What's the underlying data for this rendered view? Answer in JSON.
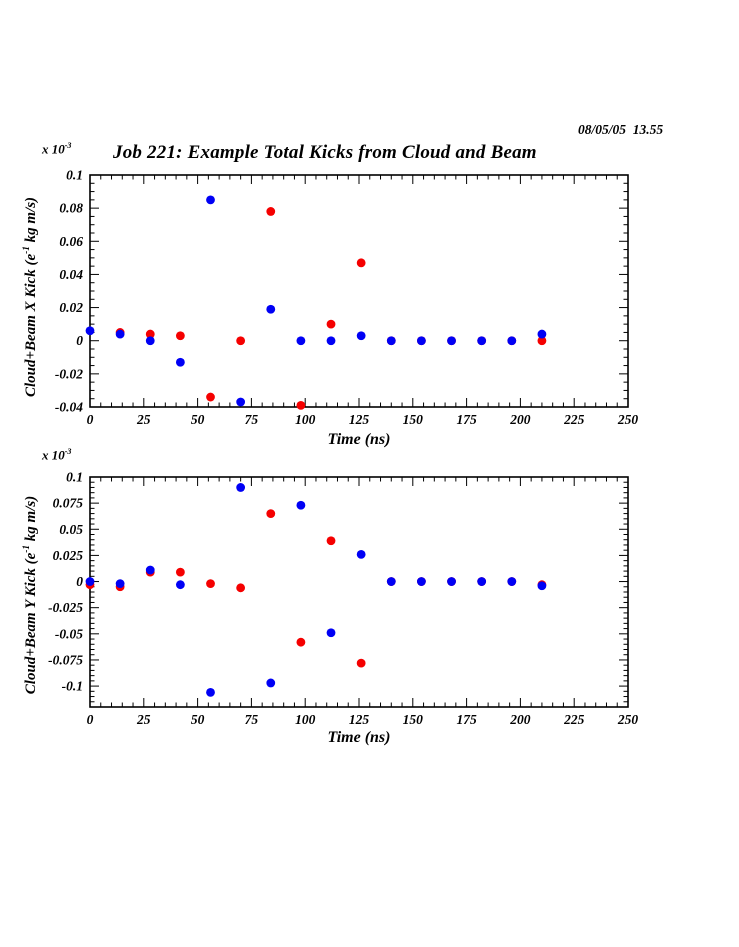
{
  "header": {
    "timestamp": "08/05/05  13.55",
    "title": "Job 221: Example Total Kicks from Cloud and Beam"
  },
  "colors": {
    "blue_series": "#0000f5",
    "red_series": "#f50000",
    "frame": "#000000",
    "text": "#000000",
    "background": "#ffffff"
  },
  "chart_data": [
    {
      "name": "x-kick",
      "type": "scatter",
      "marker": "circle",
      "grid": false,
      "legend": "none",
      "xlabel": "Time (ns)",
      "ylabel": "Cloud+Beam X Kick (e^-1 kg m/s)",
      "ylabel_parts": {
        "pre": "Cloud+Beam X Kick (e",
        "sup": "-1",
        "post": " kg m/s)"
      },
      "scale_label": {
        "pre": "x 10",
        "sup": "-3"
      },
      "xlim": [
        0,
        250
      ],
      "ylim": [
        -0.04,
        0.1
      ],
      "x_minor_step": 5,
      "y_minor_step": 0.005,
      "x_ticks": {
        "values": [
          0,
          25,
          50,
          75,
          100,
          125,
          150,
          175,
          200,
          225,
          250
        ],
        "labels": [
          "0",
          "25",
          "50",
          "75",
          "100",
          "125",
          "150",
          "175",
          "200",
          "225",
          "250"
        ]
      },
      "y_ticks": {
        "values": [
          0.1,
          0.08,
          0.06,
          0.04,
          0.02,
          0,
          -0.02,
          -0.04
        ],
        "labels": [
          "0.1",
          "0.08",
          "0.06",
          "0.04",
          "0.02",
          "0",
          "-0.02",
          "-0.04"
        ]
      },
      "x": [
        0,
        14,
        28,
        42,
        56,
        70,
        84,
        98,
        112,
        126,
        140,
        154,
        168,
        182,
        196,
        210
      ],
      "series": [
        {
          "name": "red",
          "color": "#f50000",
          "values": [
            null,
            0.005,
            0.004,
            0.003,
            -0.034,
            0.0,
            0.078,
            -0.039,
            0.01,
            0.047,
            0.0,
            0.0,
            0.0,
            0.0,
            0.0,
            0.0
          ]
        },
        {
          "name": "blue",
          "color": "#0000f5",
          "values": [
            0.006,
            0.004,
            0.0,
            -0.013,
            0.085,
            -0.037,
            0.019,
            0.0,
            0.0,
            0.003,
            0.0,
            0.0,
            0.0,
            0.0,
            0.0,
            0.004
          ]
        }
      ]
    },
    {
      "name": "y-kick",
      "type": "scatter",
      "marker": "circle",
      "grid": false,
      "legend": "none",
      "xlabel": "Time (ns)",
      "ylabel": "Cloud+Beam Y Kick (e^-1 kg m/s)",
      "ylabel_parts": {
        "pre": "Cloud+Beam Y Kick (e",
        "sup": "-1",
        "post": " kg m/s)"
      },
      "scale_label": {
        "pre": "x 10",
        "sup": "-3"
      },
      "xlim": [
        0,
        250
      ],
      "ylim": [
        -0.12,
        0.1
      ],
      "x_minor_step": 5,
      "y_minor_step": 0.005,
      "x_ticks": {
        "values": [
          0,
          25,
          50,
          75,
          100,
          125,
          150,
          175,
          200,
          225,
          250
        ],
        "labels": [
          "0",
          "25",
          "50",
          "75",
          "100",
          "125",
          "150",
          "175",
          "200",
          "225",
          "250"
        ]
      },
      "y_ticks": {
        "values": [
          0.1,
          0.075,
          0.05,
          0.025,
          0,
          -0.025,
          -0.05,
          -0.075,
          -0.1
        ],
        "labels": [
          "0.1",
          "0.075",
          "0.05",
          "0.025",
          "0",
          "-0.025",
          "-0.05",
          "-0.075",
          "-0.1"
        ]
      },
      "x": [
        0,
        14,
        28,
        42,
        56,
        70,
        84,
        98,
        112,
        126,
        140,
        154,
        168,
        182,
        196,
        210
      ],
      "series": [
        {
          "name": "red",
          "color": "#f50000",
          "values": [
            -0.003,
            -0.005,
            0.009,
            0.009,
            -0.002,
            -0.006,
            0.065,
            -0.058,
            0.039,
            -0.078,
            0.0,
            0.0,
            0.0,
            0.0,
            0.0,
            -0.003
          ]
        },
        {
          "name": "blue",
          "color": "#0000f5",
          "values": [
            0.0,
            -0.002,
            0.011,
            -0.003,
            -0.106,
            0.09,
            -0.097,
            0.073,
            -0.049,
            0.026,
            0.0,
            0.0,
            0.0,
            0.0,
            0.0,
            -0.004
          ]
        }
      ]
    }
  ]
}
